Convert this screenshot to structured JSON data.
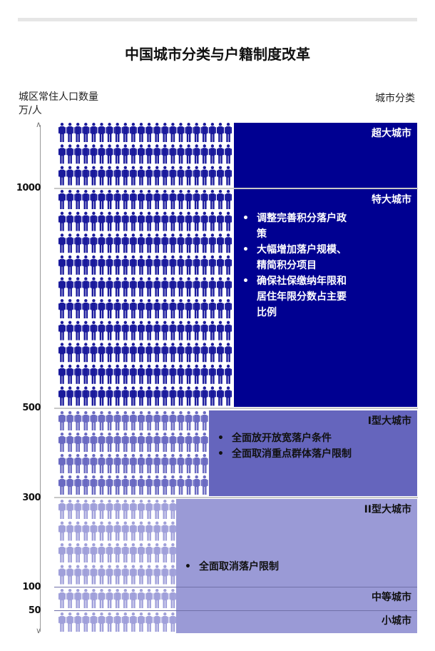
{
  "title": "中国城市分类与户籍制度改革",
  "y_axis_label": "城区常住人口数量",
  "y_axis_unit": "万/人",
  "category_header": "城市分类",
  "ticks": [
    "1000",
    "500",
    "300",
    "100",
    "50"
  ],
  "categories": [
    {
      "name": "超大城市",
      "bullets": []
    },
    {
      "name": "特大城市",
      "bullets": [
        "调整完善积分落户政策",
        "大幅增加落户规模、精简积分项目",
        "确保社保缴纳年限和居住年限分数占主要比例"
      ]
    },
    {
      "name": "I型大城市",
      "bullets": [
        "全面放开放宽落户条件",
        "全面取消重点群体落户限制"
      ]
    },
    {
      "name": "II型大城市",
      "bullets": [
        "全面取消落户限制"
      ]
    },
    {
      "name": "中等城市",
      "bullets": []
    },
    {
      "name": "小城市",
      "bullets": []
    }
  ],
  "colors": {
    "dark": "#000091",
    "mid": "#6565bd",
    "light": "#9a9ad6"
  }
}
